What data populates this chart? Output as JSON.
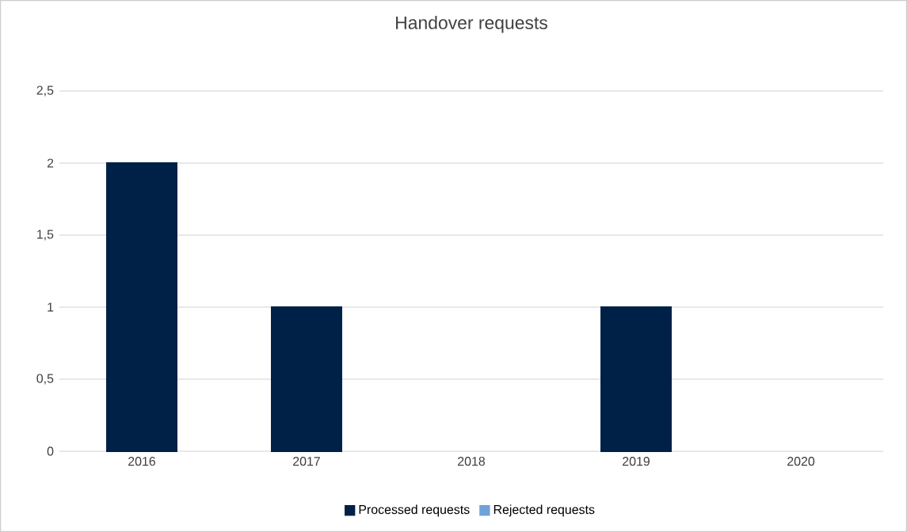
{
  "chart_data": {
    "type": "bar",
    "title": "Handover requests",
    "categories": [
      "2016",
      "2017",
      "2018",
      "2019",
      "2020"
    ],
    "stacked": true,
    "series": [
      {
        "name": "Processed requests",
        "color": "#002147",
        "values": [
          2,
          1,
          0,
          1,
          0
        ]
      },
      {
        "name": "Rejected requests",
        "color": "#6fa3d8",
        "values": [
          null,
          null,
          0,
          null,
          0
        ]
      }
    ],
    "ylim": [
      0,
      2.5
    ],
    "yticks": [
      0,
      {
        "value": 0.5,
        "label": "0,5"
      },
      1,
      {
        "value": 1.5,
        "label": "1,5"
      },
      2,
      {
        "value": 2.5,
        "label": "2,5"
      }
    ],
    "grid": "y",
    "legend": "bottom"
  }
}
